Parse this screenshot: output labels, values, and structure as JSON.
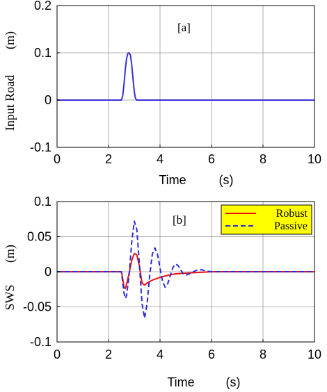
{
  "chart_data": [
    {
      "type": "line",
      "panel_label": "[a]",
      "xlabel_left": "Time",
      "xlabel_unit": "(s)",
      "ylabel_name": "Input Road",
      "ylabel_unit": "(m)",
      "xlim": [
        0,
        10
      ],
      "ylim": [
        -0.1,
        0.2
      ],
      "xticks": [
        "0",
        "2",
        "4",
        "6",
        "8",
        "10"
      ],
      "yticks": [
        "-0.1",
        "0",
        "0.1",
        "0.2"
      ],
      "grid": true,
      "colors": {
        "road": "#3a2fd6"
      },
      "series": [
        {
          "x": [
            0,
            2.5,
            2.55,
            2.6,
            2.65,
            2.7,
            2.75,
            2.8,
            2.85,
            2.9,
            2.95,
            3.0,
            3.05,
            3.1,
            10
          ],
          "y": [
            0,
            0,
            0.009,
            0.033,
            0.065,
            0.088,
            0.099,
            0.1,
            0.095,
            0.075,
            0.045,
            0.018,
            0.003,
            0,
            0
          ]
        }
      ]
    },
    {
      "type": "line",
      "panel_label": "[b]",
      "xlabel_left": "Time",
      "xlabel_unit": "(s)",
      "ylabel_name": "SWS",
      "ylabel_unit": "(m)",
      "xlim": [
        0,
        10
      ],
      "ylim": [
        -0.1,
        0.1
      ],
      "xticks": [
        "0",
        "2",
        "4",
        "6",
        "8",
        "10"
      ],
      "yticks": [
        "-0.1",
        "-0.05",
        "0",
        "0.05",
        "0.1"
      ],
      "grid": true,
      "legend": {
        "placement": "top-right",
        "background": "#ffff00"
      },
      "series": [
        {
          "name": "Robust",
          "color": "#ee1111",
          "style": "solid",
          "x": [
            0,
            2.5,
            2.55,
            2.6,
            2.65,
            2.7,
            2.8,
            2.9,
            3.0,
            3.1,
            3.2,
            3.3,
            3.4,
            3.5,
            3.7,
            4.0,
            4.3,
            4.6,
            5.0,
            5.5,
            6.0,
            10
          ],
          "y": [
            0,
            0,
            -0.01,
            -0.022,
            -0.024,
            -0.018,
            -0.002,
            0.016,
            0.026,
            0.024,
            0.008,
            -0.016,
            -0.019,
            -0.016,
            -0.012,
            -0.008,
            -0.005,
            -0.003,
            -0.002,
            -0.001,
            0,
            0
          ]
        },
        {
          "name": "Passive",
          "color": "#2a2ad6",
          "style": "dashed",
          "x": [
            0,
            2.5,
            2.55,
            2.6,
            2.65,
            2.7,
            2.8,
            2.9,
            3.0,
            3.1,
            3.2,
            3.3,
            3.4,
            3.5,
            3.6,
            3.7,
            3.8,
            3.9,
            4.0,
            4.1,
            4.2,
            4.3,
            4.4,
            4.5,
            4.6,
            4.7,
            4.8,
            4.9,
            5.0,
            5.2,
            5.4,
            5.6,
            5.8,
            6.0,
            6.5,
            10
          ],
          "y": [
            0,
            0,
            -0.015,
            -0.03,
            -0.038,
            -0.034,
            -0.005,
            0.042,
            0.072,
            0.06,
            0.01,
            -0.045,
            -0.066,
            -0.045,
            -0.005,
            0.025,
            0.034,
            0.025,
            0.005,
            -0.014,
            -0.022,
            -0.017,
            -0.005,
            0.006,
            0.011,
            0.009,
            0.003,
            -0.003,
            -0.005,
            -0.002,
            0.002,
            0.003,
            0.001,
            0,
            0,
            0
          ]
        }
      ]
    }
  ]
}
